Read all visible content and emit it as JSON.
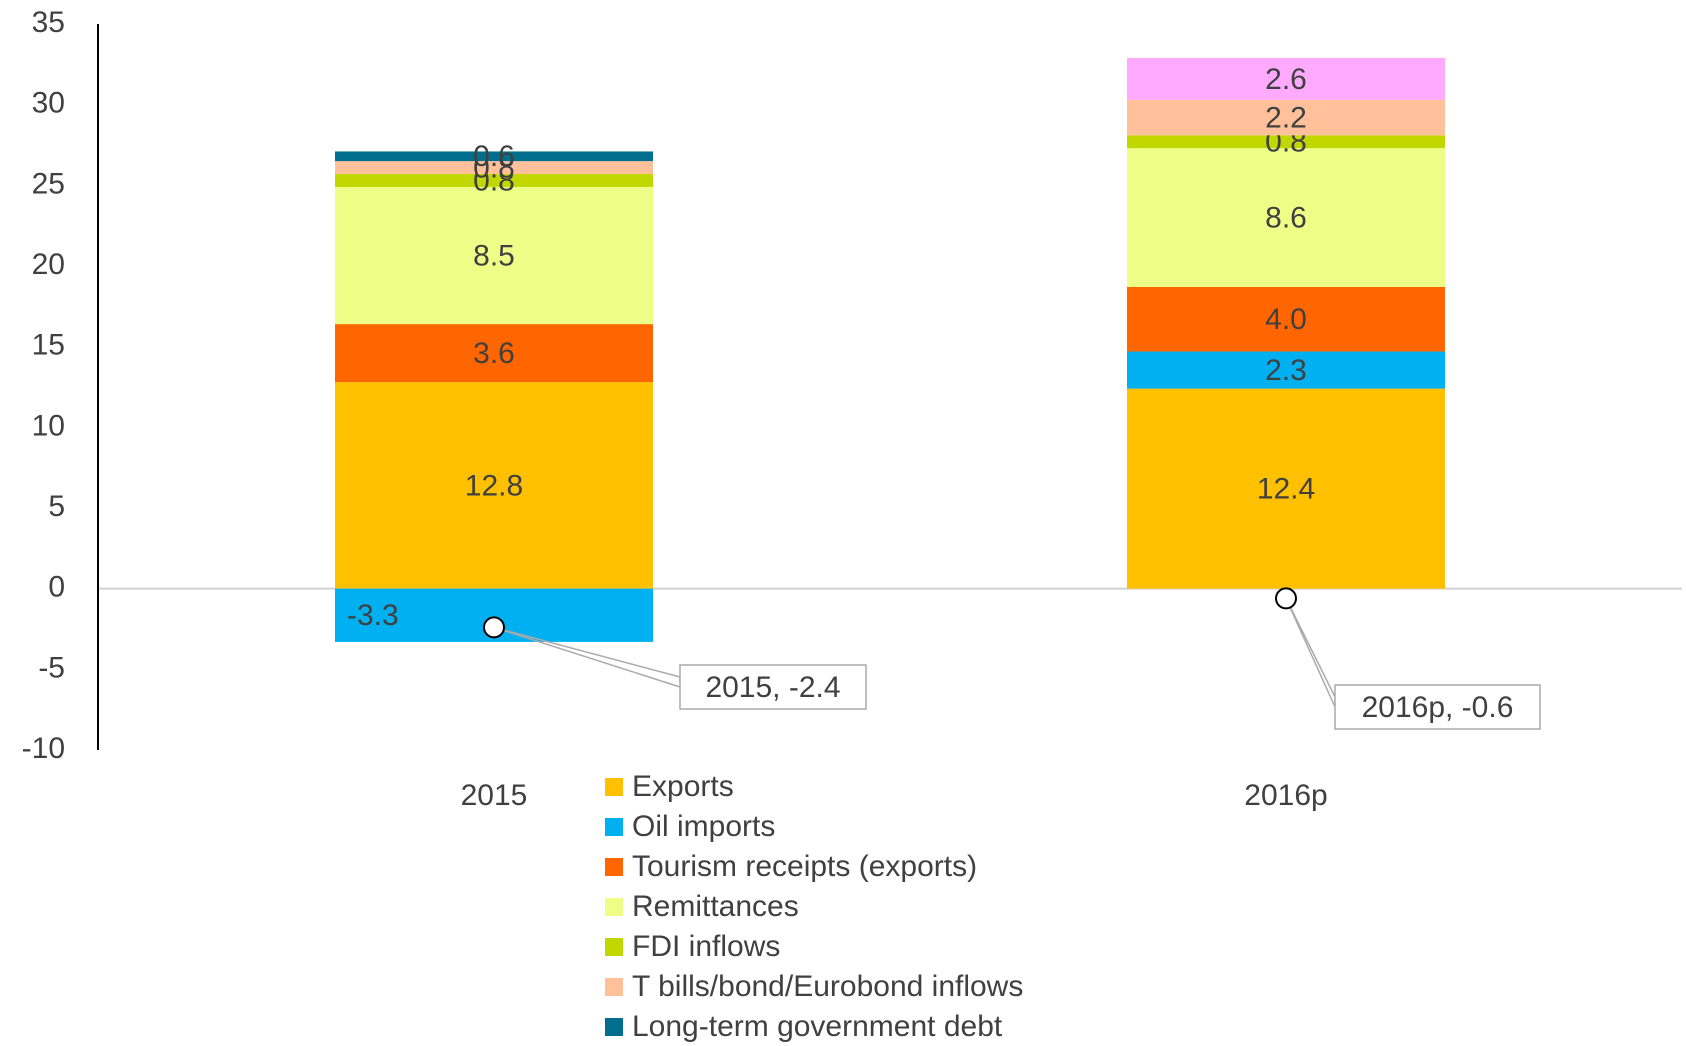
{
  "chart_data": {
    "type": "stacked_bar",
    "categories": [
      "2015",
      "2016p"
    ],
    "series": [
      {
        "name": "Exports",
        "color": "#ffc000",
        "values": [
          12.8,
          12.4
        ]
      },
      {
        "name": "Oil imports",
        "color": "#00b0f0",
        "values": [
          -3.3,
          2.3
        ]
      },
      {
        "name": "Tourism receipts (exports)",
        "color": "#ff6600",
        "values": [
          3.6,
          4.0
        ],
        "value_labels": [
          "3.6",
          "4.0"
        ]
      },
      {
        "name": "Remittances",
        "color": "#eeff88",
        "values": [
          8.5,
          8.6
        ]
      },
      {
        "name": "FDI inflows",
        "color": "#c0d800",
        "values": [
          0.8,
          0.8
        ]
      },
      {
        "name": "T bills/bond/Eurobond inflows",
        "color": "#ffc09a",
        "values": [
          0.8,
          2.2
        ]
      },
      {
        "name": "Long-term government debt",
        "color": "#006e8c",
        "values": [
          0.6,
          null
        ]
      },
      {
        "color": "#ffaaff",
        "values": [
          null,
          2.6
        ]
      }
    ],
    "points": {
      "values": [
        -2.4,
        -0.6
      ],
      "value_labels": [
        "2015, -2.4",
        "2016p, -0.6"
      ]
    },
    "ylim": [
      -10,
      35
    ],
    "yticks": [
      -10,
      -5,
      0,
      5,
      10,
      15,
      20,
      25,
      30,
      35
    ]
  }
}
